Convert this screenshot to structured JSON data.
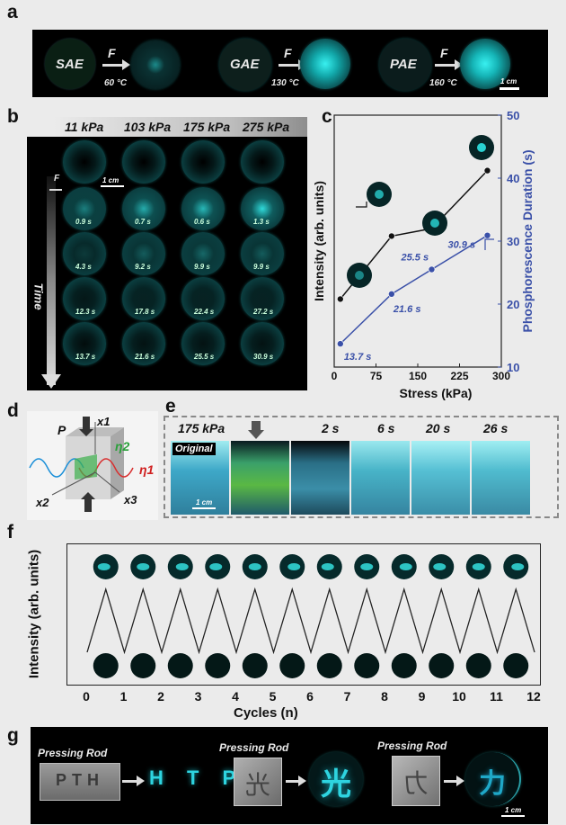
{
  "panel_labels": {
    "a": "a",
    "b": "b",
    "c": "c",
    "d": "d",
    "e": "e",
    "f": "f",
    "g": "g"
  },
  "panel_a": {
    "items": [
      {
        "from": "SAE",
        "force": "F",
        "temp": "60 °C"
      },
      {
        "from": "GAE",
        "force": "F",
        "temp": "130 °C"
      },
      {
        "from": "PAE",
        "force": "F",
        "temp": "160 °C"
      }
    ],
    "scale": "1 cm"
  },
  "panel_b": {
    "pressures": [
      "11 kPa",
      "103 kPa",
      "175 kPa",
      "275 kPa"
    ],
    "force": "F",
    "scale": "1 cm",
    "time_label": "Time",
    "times": [
      [
        "0.9 s",
        "0.7 s",
        "0.6 s",
        "1.3 s"
      ],
      [
        "4.3 s",
        "9.2 s",
        "9.9 s",
        "9.9 s"
      ],
      [
        "12.3 s",
        "17.8 s",
        "22.4 s",
        "27.2 s"
      ],
      [
        "13.7 s",
        "21.6 s",
        "25.5 s",
        "30.9 s"
      ]
    ]
  },
  "chart_data": {
    "type": "line",
    "xlabel": "Stress (kPa)",
    "ylabel_left": "Intensity (arb. units)",
    "ylabel_right": "Phosphorescence Duration (s)",
    "x_ticks": [
      "0",
      "75",
      "150",
      "225",
      "300"
    ],
    "y_right_ticks": [
      "10",
      "20",
      "30",
      "40",
      "50"
    ],
    "xlim": [
      0,
      300
    ],
    "ylim_right": [
      10,
      50
    ],
    "series": [
      {
        "x": [
          11,
          103,
          175,
          275
        ],
        "y": [
          0.27,
          0.52,
          0.55,
          0.78
        ],
        "color": "#111111",
        "axis": "left"
      },
      {
        "x": [
          11,
          103,
          175,
          275
        ],
        "y": [
          13.7,
          21.6,
          25.5,
          30.9
        ],
        "color": "#3a50a8",
        "axis": "right"
      }
    ],
    "annotations": [
      "13.7 s",
      "21.6 s",
      "25.5 s",
      "30.9 s"
    ]
  },
  "panel_d": {
    "P": "P",
    "x1": "x1",
    "x2": "x2",
    "x3": "x3",
    "eta1": "η1",
    "eta2": "η2"
  },
  "panel_e": {
    "labels": [
      "175 kPa",
      "2 s",
      "6 s",
      "20 s",
      "26 s"
    ],
    "original": "Original",
    "scale": "1 cm"
  },
  "panel_f": {
    "ylabel": "Intensity (arb. units)",
    "xlabel": "Cycles (n)",
    "ticks": [
      "0",
      "1",
      "2",
      "3",
      "4",
      "5",
      "6",
      "7",
      "8",
      "9",
      "10",
      "11",
      "12"
    ]
  },
  "panel_g": {
    "rod": "Pressing Rod",
    "results": [
      "H T P",
      "光",
      "力"
    ],
    "scale": "1 cm"
  },
  "colors": {
    "glow": "#2ee6e6",
    "blue": "#3a50a8",
    "panel_bg": "#000000"
  }
}
